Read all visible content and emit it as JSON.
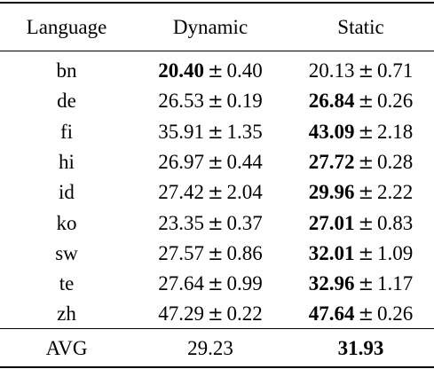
{
  "table": {
    "headers": {
      "language": "Language",
      "dynamic": "Dynamic",
      "static": "Static"
    },
    "pm_symbol": "±",
    "rows": [
      {
        "lang": "bn",
        "dyn_mean": "20.40",
        "dyn_std": "0.40",
        "stat_mean": "20.13",
        "stat_std": "0.71",
        "best": "dynamic"
      },
      {
        "lang": "de",
        "dyn_mean": "26.53",
        "dyn_std": "0.19",
        "stat_mean": "26.84",
        "stat_std": "0.26",
        "best": "static"
      },
      {
        "lang": "fi",
        "dyn_mean": "35.91",
        "dyn_std": "1.35",
        "stat_mean": "43.09",
        "stat_std": "2.18",
        "best": "static"
      },
      {
        "lang": "hi",
        "dyn_mean": "26.97",
        "dyn_std": "0.44",
        "stat_mean": "27.72",
        "stat_std": "0.28",
        "best": "static"
      },
      {
        "lang": "id",
        "dyn_mean": "27.42",
        "dyn_std": "2.04",
        "stat_mean": "29.96",
        "stat_std": "2.22",
        "best": "static"
      },
      {
        "lang": "ko",
        "dyn_mean": "23.35",
        "dyn_std": "0.37",
        "stat_mean": "27.01",
        "stat_std": "0.83",
        "best": "static"
      },
      {
        "lang": "sw",
        "dyn_mean": "27.57",
        "dyn_std": "0.86",
        "stat_mean": "32.01",
        "stat_std": "1.09",
        "best": "static"
      },
      {
        "lang": "te",
        "dyn_mean": "27.64",
        "dyn_std": "0.99",
        "stat_mean": "32.96",
        "stat_std": "1.17",
        "best": "static"
      },
      {
        "lang": "zh",
        "dyn_mean": "47.29",
        "dyn_std": "0.22",
        "stat_mean": "47.64",
        "stat_std": "0.26",
        "best": "static"
      }
    ],
    "avg": {
      "label": "AVG",
      "dynamic": "29.23",
      "static": "31.93",
      "best": "static"
    }
  }
}
